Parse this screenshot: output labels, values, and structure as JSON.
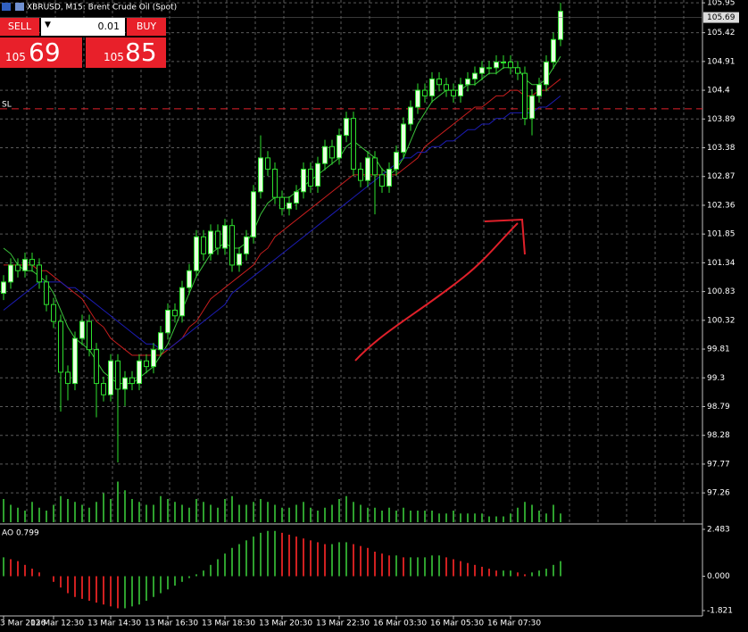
{
  "window": {
    "title": "XBRUSD, M15: Brent Crude Oil (Spot)"
  },
  "trade_panel": {
    "sell": "SELL",
    "buy": "BUY",
    "lot": "0.01",
    "sell_big": "105",
    "sell_small": "69",
    "buy_big": "105",
    "buy_small": "85"
  },
  "chart_data": [
    {
      "type": "candlestick",
      "categories": [
        "3 Mar 2026",
        null,
        null,
        null,
        null,
        null,
        null,
        "13 Mar 12:30",
        null,
        null,
        null,
        null,
        null,
        null,
        null,
        "13 Mar 14:30",
        null,
        null,
        null,
        null,
        null,
        null,
        null,
        "13 Mar 16:30",
        null,
        null,
        null,
        null,
        null,
        null,
        null,
        "13 Mar 18:30",
        null,
        null,
        null,
        null,
        null,
        null,
        null,
        "13 Mar 20:30",
        null,
        null,
        null,
        null,
        null,
        null,
        null,
        "13 Mar 22:30",
        null,
        null,
        null,
        null,
        null,
        null,
        null,
        "16 Mar 03:30",
        null,
        null,
        null,
        null,
        null,
        null,
        null,
        "16 Mar 05:30",
        null,
        null,
        null,
        null,
        null,
        null,
        null,
        "16 Mar 07:30",
        null,
        null,
        null,
        null,
        null,
        null,
        null
      ],
      "open": [
        100.8,
        101.0,
        101.3,
        101.2,
        101.4,
        101.3,
        101.0,
        100.6,
        100.3,
        99.4,
        99.2,
        100.0,
        100.3,
        99.8,
        99.2,
        99.0,
        99.6,
        99.1,
        99.3,
        99.2,
        99.6,
        99.5,
        99.8,
        100.1,
        100.5,
        100.4,
        100.9,
        101.2,
        101.8,
        101.5,
        101.9,
        101.6,
        102.0,
        101.3,
        101.5,
        101.8,
        102.6,
        103.2,
        103.0,
        102.5,
        102.3,
        102.4,
        102.6,
        103.0,
        102.7,
        103.1,
        103.4,
        103.2,
        103.6,
        103.9,
        103.0,
        102.8,
        103.2,
        102.9,
        102.7,
        103.0,
        103.3,
        103.8,
        104.1,
        104.4,
        104.3,
        104.6,
        104.5,
        104.4,
        104.3,
        104.5,
        104.6,
        104.7,
        104.8,
        104.8,
        104.9,
        104.9,
        104.8,
        104.7,
        103.9,
        104.3,
        104.5,
        104.9,
        105.3
      ],
      "high": [
        101.12,
        101.42,
        101.42,
        101.52,
        101.52,
        101.42,
        101.12,
        100.72,
        100.42,
        99.52,
        100.12,
        100.42,
        100.42,
        99.92,
        99.32,
        99.72,
        99.72,
        99.42,
        99.42,
        99.72,
        99.72,
        99.92,
        100.22,
        100.62,
        100.62,
        101.02,
        101.32,
        101.92,
        101.92,
        102.02,
        102.02,
        102.12,
        102.12,
        101.62,
        101.92,
        102.72,
        103.6,
        103.32,
        103.12,
        102.62,
        102.52,
        102.72,
        103.12,
        103.12,
        103.22,
        103.52,
        103.52,
        103.72,
        104.02,
        104.02,
        103.12,
        103.32,
        103.32,
        103.02,
        103.12,
        103.42,
        103.92,
        104.22,
        104.52,
        104.52,
        104.72,
        104.72,
        104.62,
        104.52,
        104.62,
        104.72,
        104.82,
        104.92,
        104.92,
        105.02,
        105.02,
        105.02,
        104.92,
        104.82,
        104.42,
        104.62,
        105.02,
        105.42,
        105.95
      ],
      "low": [
        100.68,
        100.88,
        101.08,
        101.08,
        101.18,
        100.88,
        100.48,
        100.18,
        98.7,
        98.9,
        99.08,
        99.88,
        99.68,
        98.6,
        98.88,
        98.88,
        97.8,
        98.8,
        99.08,
        99.08,
        99.38,
        99.38,
        99.68,
        99.98,
        100.28,
        100.28,
        100.78,
        101.08,
        101.38,
        101.38,
        101.48,
        101.48,
        101.18,
        101.18,
        101.38,
        101.68,
        102.48,
        102.88,
        102.38,
        102.18,
        102.18,
        102.28,
        102.48,
        102.58,
        102.58,
        102.98,
        103.08,
        103.08,
        103.48,
        102.88,
        102.68,
        102.68,
        102.2,
        102.58,
        102.58,
        102.88,
        103.18,
        103.68,
        103.98,
        104.18,
        104.18,
        104.38,
        104.28,
        104.18,
        104.18,
        104.38,
        104.48,
        104.58,
        104.68,
        104.68,
        104.78,
        104.68,
        104.58,
        103.78,
        103.6,
        104.18,
        104.38,
        104.78,
        105.18
      ],
      "close": [
        101.0,
        101.3,
        101.2,
        101.4,
        101.3,
        101.0,
        100.6,
        100.3,
        99.4,
        99.2,
        100.0,
        100.3,
        99.8,
        99.2,
        99.0,
        99.6,
        99.1,
        99.3,
        99.2,
        99.6,
        99.5,
        99.8,
        100.1,
        100.5,
        100.4,
        100.9,
        101.2,
        101.8,
        101.5,
        101.9,
        101.6,
        102.0,
        101.3,
        101.5,
        101.8,
        102.6,
        103.2,
        103.0,
        102.5,
        102.3,
        102.4,
        102.6,
        103.0,
        102.7,
        103.1,
        103.4,
        103.2,
        103.6,
        103.9,
        103.0,
        102.8,
        103.2,
        102.9,
        102.7,
        103.0,
        103.3,
        103.8,
        104.1,
        104.4,
        104.3,
        104.6,
        104.5,
        104.4,
        104.3,
        104.5,
        104.6,
        104.7,
        104.8,
        104.8,
        104.9,
        104.9,
        104.8,
        104.7,
        103.9,
        104.3,
        104.5,
        104.9,
        105.3,
        105.8
      ],
      "series": [
        {
          "color": "#3cc43c",
          "values": [
            101.6,
            101.5,
            101.3,
            101.2,
            101.2,
            101.1,
            101.0,
            100.8,
            100.5,
            100.2,
            100.0,
            99.9,
            99.8,
            99.6,
            99.4,
            99.3,
            99.2,
            99.2,
            99.2,
            99.3,
            99.4,
            99.5,
            99.7,
            99.9,
            100.2,
            100.5,
            100.8,
            101.1,
            101.3,
            101.5,
            101.6,
            101.7,
            101.6,
            101.6,
            101.7,
            101.9,
            102.2,
            102.4,
            102.5,
            102.5,
            102.5,
            102.6,
            102.7,
            102.8,
            102.9,
            103.0,
            103.1,
            103.2,
            103.4,
            103.5,
            103.4,
            103.3,
            103.2,
            103.0,
            102.9,
            103.0,
            103.2,
            103.5,
            103.8,
            104.0,
            104.2,
            104.3,
            104.4,
            104.4,
            104.4,
            104.5,
            104.5,
            104.6,
            104.7,
            104.7,
            104.8,
            104.8,
            104.8,
            104.6,
            104.5,
            104.5,
            104.6,
            104.8,
            105.0
          ]
        },
        {
          "color": "#c81e1e",
          "values": [
            101.3,
            101.3,
            101.3,
            101.3,
            101.3,
            101.2,
            101.2,
            101.1,
            101.0,
            100.9,
            100.8,
            100.7,
            100.5,
            100.3,
            100.2,
            100.0,
            99.9,
            99.8,
            99.7,
            99.7,
            99.7,
            99.7,
            99.7,
            99.8,
            99.9,
            100.0,
            100.2,
            100.3,
            100.5,
            100.7,
            100.8,
            100.9,
            101.0,
            101.1,
            101.2,
            101.3,
            101.5,
            101.6,
            101.8,
            101.9,
            102.0,
            102.1,
            102.2,
            102.3,
            102.4,
            102.5,
            102.6,
            102.7,
            102.8,
            102.9,
            102.9,
            102.9,
            102.9,
            102.9,
            102.9,
            102.9,
            103.0,
            103.1,
            103.2,
            103.4,
            103.5,
            103.6,
            103.7,
            103.8,
            103.9,
            104.0,
            104.1,
            104.1,
            104.2,
            104.3,
            104.3,
            104.4,
            104.4,
            104.3,
            104.3,
            104.4,
            104.4,
            104.5,
            104.6
          ]
        },
        {
          "color": "#1c1cb4",
          "values": [
            100.5,
            100.6,
            100.7,
            100.8,
            100.9,
            101.0,
            101.0,
            101.0,
            101.0,
            100.9,
            100.9,
            100.8,
            100.7,
            100.6,
            100.5,
            100.4,
            100.3,
            100.2,
            100.1,
            100.0,
            99.9,
            99.9,
            99.8,
            99.8,
            99.9,
            100.0,
            100.1,
            100.2,
            100.3,
            100.4,
            100.5,
            100.6,
            100.8,
            100.9,
            101.0,
            101.1,
            101.2,
            101.3,
            101.4,
            101.5,
            101.6,
            101.7,
            101.8,
            101.9,
            102.0,
            102.1,
            102.2,
            102.3,
            102.4,
            102.5,
            102.6,
            102.7,
            102.8,
            102.9,
            103.0,
            103.1,
            103.2,
            103.2,
            103.3,
            103.3,
            103.4,
            103.4,
            103.5,
            103.5,
            103.6,
            103.7,
            103.7,
            103.8,
            103.8,
            103.9,
            103.9,
            104.0,
            104.0,
            104.0,
            104.0,
            104.1,
            104.1,
            104.2,
            104.3
          ]
        }
      ],
      "volume": [
        40,
        30,
        25,
        20,
        35,
        25,
        20,
        30,
        45,
        40,
        35,
        30,
        25,
        35,
        50,
        40,
        70,
        55,
        40,
        35,
        30,
        30,
        45,
        40,
        35,
        30,
        25,
        40,
        35,
        30,
        25,
        40,
        45,
        30,
        30,
        35,
        40,
        35,
        30,
        25,
        25,
        30,
        35,
        25,
        20,
        25,
        30,
        40,
        45,
        35,
        30,
        25,
        25,
        20,
        25,
        20,
        25,
        20,
        20,
        20,
        20,
        15,
        15,
        20,
        15,
        15,
        15,
        15,
        10,
        10,
        10,
        15,
        25,
        35,
        30,
        20,
        15,
        30,
        15
      ],
      "ylim": [
        96.74,
        106.0
      ],
      "yticks": [
        105.95,
        105.42,
        104.91,
        104.4,
        103.89,
        103.38,
        102.87,
        102.36,
        101.85,
        101.34,
        100.83,
        100.32,
        99.81,
        99.3,
        98.79,
        98.28,
        97.77,
        97.26
      ],
      "current_price": 105.69,
      "sl": {
        "label": "SL",
        "value": 104.07
      },
      "grid": true
    },
    {
      "type": "histogram",
      "label": "AO 0.799",
      "values": [
        1.0,
        0.9,
        0.8,
        0.6,
        0.4,
        0.2,
        0.0,
        -0.3,
        -0.6,
        -0.9,
        -1.1,
        -1.2,
        -1.3,
        -1.4,
        -1.5,
        -1.6,
        -1.7,
        -1.7,
        -1.6,
        -1.5,
        -1.3,
        -1.1,
        -0.9,
        -0.7,
        -0.5,
        -0.3,
        -0.1,
        0.1,
        0.3,
        0.6,
        0.9,
        1.2,
        1.5,
        1.7,
        1.9,
        2.1,
        2.3,
        2.4,
        2.4,
        2.3,
        2.2,
        2.1,
        2.0,
        1.9,
        1.8,
        1.7,
        1.7,
        1.8,
        1.8,
        1.7,
        1.6,
        1.5,
        1.3,
        1.2,
        1.1,
        1.1,
        1.0,
        1.0,
        1.0,
        1.0,
        1.1,
        1.1,
        1.0,
        0.9,
        0.8,
        0.7,
        0.6,
        0.5,
        0.4,
        0.3,
        0.3,
        0.3,
        0.2,
        0.1,
        0.2,
        0.3,
        0.4,
        0.6,
        0.8
      ],
      "ylim": [
        -1.821,
        2.483
      ],
      "yticks": [
        2.483,
        {
          "value": 0,
          "label": "0.000"
        },
        -1.821
      ]
    }
  ]
}
